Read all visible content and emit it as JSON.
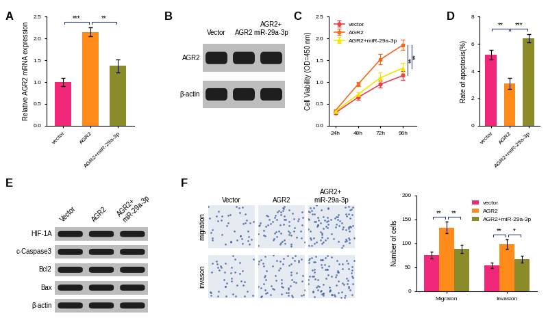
{
  "chart_data": [
    {
      "panel": "A",
      "type": "bar",
      "categories": [
        "vector",
        "AGR2",
        "AGR2+miR-29a-3p"
      ],
      "values": [
        1.0,
        2.15,
        1.37
      ],
      "error": [
        0.1,
        0.1,
        0.15
      ],
      "colors": [
        "#f0287a",
        "#ff8c1a",
        "#8b8b2a"
      ],
      "y_label": "Relative AGR2 mRNA expression",
      "ylim": [
        0.0,
        2.5
      ],
      "yticks": [
        0.0,
        0.5,
        1.0,
        1.5,
        2.0,
        2.5
      ],
      "annotations": [
        "***",
        "**"
      ]
    },
    {
      "panel": "C",
      "type": "line",
      "categories": [
        "24h",
        "48h",
        "72h",
        "96h"
      ],
      "series": [
        {
          "name": "vector",
          "color": "#e8414a",
          "marker": "circle",
          "values": [
            0.3,
            0.65,
            0.95,
            1.15
          ],
          "error": [
            0.03,
            0.05,
            0.08,
            0.1
          ]
        },
        {
          "name": "AGR2",
          "color": "#f26b1f",
          "marker": "square",
          "values": [
            0.35,
            0.95,
            1.52,
            1.85
          ],
          "error": [
            0.03,
            0.05,
            0.12,
            0.12
          ]
        },
        {
          "name": "AGR2+miR-29a-3p",
          "color": "#f5e400",
          "marker": "triangle",
          "values": [
            0.33,
            0.72,
            1.1,
            1.32
          ],
          "error": [
            0.03,
            0.05,
            0.12,
            0.12
          ]
        }
      ],
      "y_label": "Cell Viability (OD=450 nm)",
      "ylim": [
        0.0,
        2.5
      ],
      "yticks": [
        0.0,
        0.5,
        1.0,
        1.5,
        2.0,
        2.5
      ],
      "legend": "upper left",
      "annotations": [
        "**",
        "**"
      ]
    },
    {
      "panel": "D",
      "type": "bar",
      "categories": [
        "vector",
        "AGR2",
        "AGR2+miR-29a-3p"
      ],
      "values": [
        5.2,
        3.1,
        6.4
      ],
      "error": [
        0.35,
        0.4,
        0.3
      ],
      "colors": [
        "#f0287a",
        "#ff8c1a",
        "#8b8b2a"
      ],
      "y_label": "Rate of apoptosis(%)",
      "ylim": [
        0,
        8
      ],
      "yticks": [
        0,
        2,
        4,
        6,
        8
      ],
      "annotations": [
        "**",
        "***"
      ]
    },
    {
      "type": "bar",
      "categories": [
        "Migraion",
        "Invasion"
      ],
      "series": [
        {
          "name": "vector",
          "color": "#f0287a",
          "values": [
            75,
            54
          ],
          "error": [
            7,
            6
          ]
        },
        {
          "name": "AGR2",
          "color": "#ff8c1a",
          "values": [
            133,
            98
          ],
          "error": [
            12,
            10
          ]
        },
        {
          "name": "AGR2+miR-29a-3p",
          "color": "#8b8b2a",
          "values": [
            88,
            67
          ],
          "error": [
            9,
            7
          ]
        }
      ],
      "y_label": "Number of cells",
      "ylim": [
        0,
        200
      ],
      "yticks": [
        0,
        50,
        100,
        150,
        200
      ],
      "legend": "upper right",
      "annotations": [
        [
          "**",
          "**"
        ],
        [
          "**",
          "*"
        ]
      ]
    }
  ],
  "blots": [
    {
      "panel": "B",
      "lanes": [
        "Vector",
        "AGR2",
        "AGR2+\nmiR-29a-3p"
      ],
      "rows": [
        "AGR2",
        "β-actin"
      ]
    },
    {
      "panel": "E",
      "lanes": [
        "Vector",
        "AGR2",
        "AGR2+\nmiR-29a-3p"
      ],
      "rows": [
        "HIF-1A",
        "c-Caspase3",
        "Bcl2",
        "Bax",
        "β-actin"
      ]
    }
  ],
  "images": {
    "panel": "F",
    "columns": [
      "Vector",
      "AGR2",
      "AGR2+\nmiR-29a-3p"
    ],
    "rows": [
      "migration",
      "invason"
    ]
  }
}
